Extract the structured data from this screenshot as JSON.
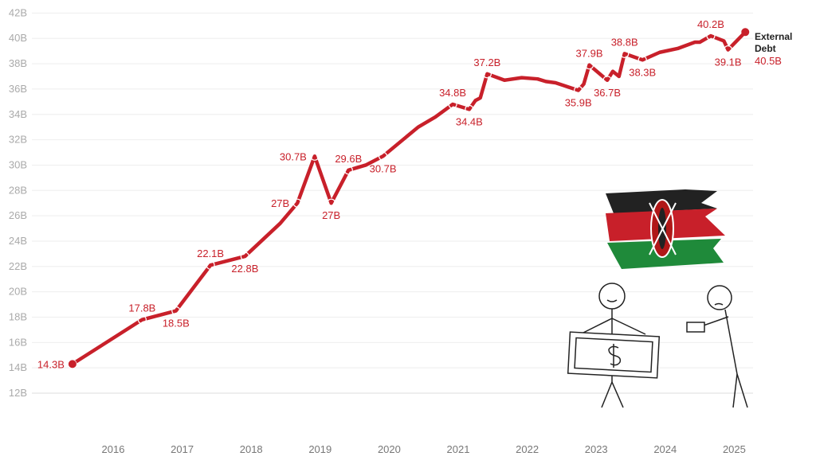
{
  "chart_data": {
    "type": "line",
    "title": "",
    "xlabel": "",
    "ylabel": "",
    "ylim": [
      12,
      42
    ],
    "xlim": [
      2015.0,
      2025.3
    ],
    "yticks": [
      "12B",
      "14B",
      "16B",
      "18B",
      "20B",
      "22B",
      "24B",
      "26B",
      "28B",
      "30B",
      "32B",
      "34B",
      "36B",
      "38B",
      "40B",
      "42B"
    ],
    "xticks": [
      "2016",
      "2017",
      "2018",
      "2019",
      "2020",
      "2021",
      "2022",
      "2023",
      "2024",
      "2025"
    ],
    "grid": true,
    "line_color": "#c8202a",
    "series": [
      {
        "name": "External Debt",
        "end_label": "40.5B",
        "x": [
          2015.41,
          2016.42,
          2016.91,
          2017.41,
          2017.91,
          2018.42,
          2018.67,
          2018.92,
          2019.16,
          2019.41,
          2019.66,
          2019.91,
          2020.42,
          2020.67,
          2020.92,
          2021.16,
          2021.25,
          2021.32,
          2021.42,
          2021.67,
          2021.92,
          2022.15,
          2022.27,
          2022.41,
          2022.74,
          2022.82,
          2022.9,
          2023.16,
          2023.24,
          2023.33,
          2023.41,
          2023.67,
          2023.92,
          2024.18,
          2024.43,
          2024.5,
          2024.66,
          2024.85,
          2024.91,
          2025.16
        ],
        "y": [
          14.3,
          17.8,
          18.5,
          22.1,
          22.8,
          25.4,
          27.0,
          30.7,
          27.0,
          29.6,
          30.0,
          30.7,
          33.0,
          33.8,
          34.8,
          34.4,
          35.1,
          35.3,
          37.2,
          36.7,
          36.9,
          36.8,
          36.6,
          36.5,
          35.9,
          36.4,
          37.9,
          36.7,
          37.4,
          37.0,
          38.8,
          38.3,
          38.9,
          39.2,
          39.7,
          39.7,
          40.2,
          39.8,
          39.1,
          40.5
        ]
      }
    ],
    "data_labels": [
      {
        "index": 0,
        "text": "14.3B",
        "pos": "left"
      },
      {
        "index": 1,
        "text": "17.8B",
        "pos": "above"
      },
      {
        "index": 2,
        "text": "18.5B",
        "pos": "below"
      },
      {
        "index": 3,
        "text": "22.1B",
        "pos": "above"
      },
      {
        "index": 4,
        "text": "22.8B",
        "pos": "below"
      },
      {
        "index": 6,
        "text": "27B",
        "pos": "left"
      },
      {
        "index": 7,
        "text": "30.7B",
        "pos": "left"
      },
      {
        "index": 8,
        "text": "27B",
        "pos": "below"
      },
      {
        "index": 9,
        "text": "29.6B",
        "pos": "above"
      },
      {
        "index": 11,
        "text": "30.7B",
        "pos": "below"
      },
      {
        "index": 14,
        "text": "34.8B",
        "pos": "above"
      },
      {
        "index": 15,
        "text": "34.4B",
        "pos": "below"
      },
      {
        "index": 18,
        "text": "37.2B",
        "pos": "above"
      },
      {
        "index": 24,
        "text": "35.9B",
        "pos": "below"
      },
      {
        "index": 26,
        "text": "37.9B",
        "pos": "above"
      },
      {
        "index": 27,
        "text": "36.7B",
        "pos": "below"
      },
      {
        "index": 30,
        "text": "38.8B",
        "pos": "above"
      },
      {
        "index": 31,
        "text": "38.3B",
        "pos": "below"
      },
      {
        "index": 36,
        "text": "40.2B",
        "pos": "above"
      },
      {
        "index": 38,
        "text": "39.1B",
        "pos": "below"
      }
    ]
  },
  "illustration": {
    "flag": "Kenya",
    "figures": "two stick figures exchanging money"
  }
}
